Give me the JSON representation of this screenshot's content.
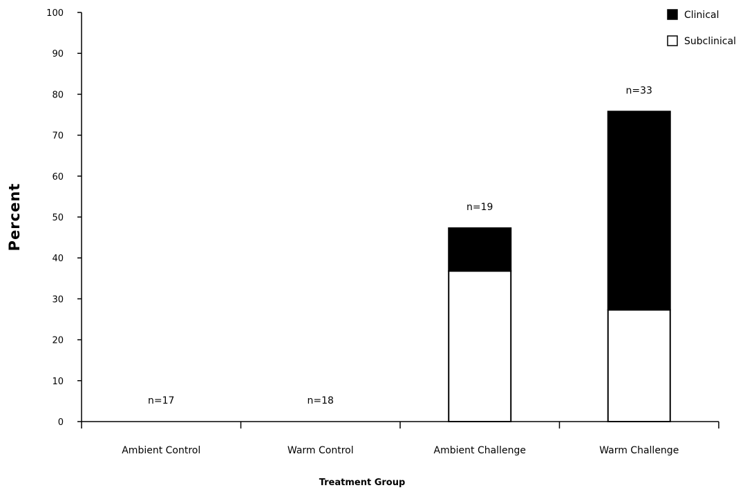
{
  "chart_data": {
    "type": "bar",
    "stacked": true,
    "categories": [
      "Ambient Control",
      "Warm Control",
      "Ambient Challenge",
      "Warm Challenge"
    ],
    "series": [
      {
        "name": "Subclinical",
        "values": [
          0,
          0,
          36.8,
          27.3
        ],
        "color": "#ffffff"
      },
      {
        "name": "Clinical",
        "values": [
          0,
          0,
          10.5,
          48.5
        ],
        "color": "#000000"
      }
    ],
    "n_labels": [
      "n=17",
      "n=18",
      "n=19",
      "n=33"
    ],
    "xlabel": "Treatment Group",
    "ylabel": "Percent",
    "ylim": [
      0,
      100
    ],
    "yticks": [
      0,
      10,
      20,
      30,
      40,
      50,
      60,
      70,
      80,
      90,
      100
    ],
    "grid": false,
    "legend_position": "top-right"
  }
}
